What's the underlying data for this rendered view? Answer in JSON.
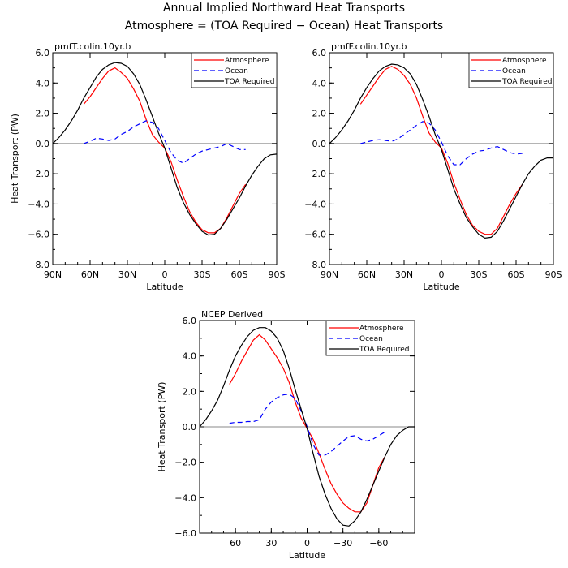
{
  "title_line1": "Annual Implied Northward Heat Transports",
  "title_line2": "Atmosphere = (TOA Required − Ocean) Heat Transports",
  "colors": {
    "atmosphere": "#ff0000",
    "ocean": "#0000ff",
    "toa": "#000000",
    "zero": "#888888"
  },
  "chart_data": [
    {
      "type": "line",
      "subtitle": "pmfT.colin.10yr.b",
      "xlabel": "Latitude",
      "ylabel": "Heat Transport (PW)",
      "xlim": [
        90,
        -90
      ],
      "ylim": [
        -8,
        6
      ],
      "xticks": [
        90,
        60,
        30,
        0,
        -30,
        -60,
        -90
      ],
      "xtick_labels": [
        "90N",
        "60N",
        "30N",
        "0",
        "30S",
        "60S",
        "90S"
      ],
      "yticks": [
        6,
        4,
        2,
        0,
        -2,
        -4,
        -6,
        -8
      ],
      "ytick_labels": [
        "6.0",
        "4.0",
        "2.0",
        "0.0",
        "−2.0",
        "−4.0",
        "−6.0",
        "−8.0"
      ],
      "legend": [
        "Atmosphere",
        "Ocean",
        "TOA Required"
      ],
      "series": [
        {
          "name": "Atmosphere",
          "style": "solid",
          "x": [
            65,
            60,
            55,
            50,
            45,
            40,
            35,
            30,
            25,
            20,
            15,
            10,
            5,
            0,
            -5,
            -10,
            -15,
            -20,
            -25,
            -30,
            -35,
            -40,
            -45,
            -50,
            -55,
            -60,
            -65
          ],
          "y": [
            2.6,
            3.1,
            3.7,
            4.3,
            4.8,
            5.0,
            4.7,
            4.3,
            3.6,
            2.8,
            1.6,
            0.6,
            0.1,
            -0.3,
            -1.2,
            -2.4,
            -3.5,
            -4.5,
            -5.2,
            -5.7,
            -5.9,
            -5.9,
            -5.6,
            -4.9,
            -4.1,
            -3.3,
            -2.7
          ]
        },
        {
          "name": "Ocean",
          "style": "dashed",
          "x": [
            65,
            60,
            55,
            50,
            45,
            40,
            35,
            30,
            25,
            20,
            15,
            10,
            5,
            0,
            -5,
            -10,
            -15,
            -20,
            -25,
            -30,
            -35,
            -40,
            -45,
            -50,
            -55,
            -60,
            -65
          ],
          "y": [
            0.0,
            0.15,
            0.35,
            0.3,
            0.2,
            0.3,
            0.6,
            0.8,
            1.1,
            1.3,
            1.5,
            1.4,
            1.0,
            0.2,
            -0.6,
            -1.1,
            -1.3,
            -1.0,
            -0.7,
            -0.5,
            -0.4,
            -0.3,
            -0.2,
            0.0,
            -0.2,
            -0.4,
            -0.4
          ]
        },
        {
          "name": "TOA Required",
          "style": "solid",
          "x": [
            90,
            85,
            80,
            75,
            70,
            65,
            60,
            55,
            50,
            45,
            40,
            35,
            30,
            25,
            20,
            15,
            10,
            5,
            0,
            -5,
            -10,
            -15,
            -20,
            -25,
            -30,
            -35,
            -40,
            -45,
            -50,
            -55,
            -60,
            -65,
            -70,
            -75,
            -80,
            -85,
            -90
          ],
          "y": [
            0.0,
            0.4,
            0.9,
            1.5,
            2.2,
            3.0,
            3.7,
            4.4,
            4.9,
            5.2,
            5.35,
            5.3,
            5.1,
            4.6,
            3.9,
            2.9,
            1.8,
            0.7,
            -0.3,
            -1.6,
            -2.9,
            -3.9,
            -4.7,
            -5.3,
            -5.8,
            -6.05,
            -6.0,
            -5.6,
            -5.0,
            -4.3,
            -3.6,
            -2.8,
            -2.1,
            -1.5,
            -1.0,
            -0.75,
            -0.7
          ]
        }
      ]
    },
    {
      "type": "line",
      "subtitle": "pmfF.colin.10yr.b",
      "xlabel": "Latitude",
      "ylabel": "",
      "xlim": [
        90,
        -90
      ],
      "ylim": [
        -8,
        6
      ],
      "xticks": [
        90,
        60,
        30,
        0,
        -30,
        -60,
        -90
      ],
      "xtick_labels": [
        "90N",
        "60N",
        "30N",
        "0",
        "30S",
        "60S",
        "90S"
      ],
      "yticks": [
        6,
        4,
        2,
        0,
        -2,
        -4,
        -6,
        -8
      ],
      "ytick_labels": [
        "6.0",
        "4.0",
        "2.0",
        "0.0",
        "−2.0",
        "−4.0",
        "−6.0",
        "−8.0"
      ],
      "legend": [
        "Atmosphere",
        "Ocean",
        "TOA Required"
      ],
      "series": [
        {
          "name": "Atmosphere",
          "style": "solid",
          "x": [
            65,
            60,
            55,
            50,
            45,
            40,
            35,
            30,
            25,
            20,
            15,
            10,
            5,
            0,
            -5,
            -10,
            -15,
            -20,
            -25,
            -30,
            -35,
            -40,
            -45,
            -50,
            -55,
            -60,
            -65
          ],
          "y": [
            2.6,
            3.2,
            3.8,
            4.4,
            4.9,
            5.1,
            4.9,
            4.5,
            3.9,
            3.0,
            1.8,
            0.7,
            0.1,
            -0.3,
            -1.3,
            -2.6,
            -3.7,
            -4.7,
            -5.4,
            -5.8,
            -6.0,
            -6.0,
            -5.6,
            -4.8,
            -4.0,
            -3.3,
            -2.7
          ]
        },
        {
          "name": "Ocean",
          "style": "dashed",
          "x": [
            65,
            60,
            55,
            50,
            45,
            40,
            35,
            30,
            25,
            20,
            15,
            10,
            5,
            0,
            -5,
            -10,
            -15,
            -20,
            -25,
            -30,
            -35,
            -40,
            -45,
            -50,
            -55,
            -60,
            -65
          ],
          "y": [
            0.0,
            0.1,
            0.2,
            0.25,
            0.2,
            0.15,
            0.3,
            0.6,
            0.9,
            1.2,
            1.45,
            1.35,
            0.9,
            0.1,
            -0.8,
            -1.4,
            -1.4,
            -1.0,
            -0.7,
            -0.5,
            -0.45,
            -0.3,
            -0.2,
            -0.4,
            -0.6,
            -0.7,
            -0.65
          ]
        },
        {
          "name": "TOA Required",
          "style": "solid",
          "x": [
            90,
            85,
            80,
            75,
            70,
            65,
            60,
            55,
            50,
            45,
            40,
            35,
            30,
            25,
            20,
            15,
            10,
            5,
            0,
            -5,
            -10,
            -15,
            -20,
            -25,
            -30,
            -35,
            -40,
            -45,
            -50,
            -55,
            -60,
            -65,
            -70,
            -75,
            -80,
            -85,
            -90
          ],
          "y": [
            0.0,
            0.4,
            0.9,
            1.5,
            2.2,
            3.0,
            3.7,
            4.3,
            4.8,
            5.1,
            5.25,
            5.2,
            5.0,
            4.6,
            3.9,
            2.9,
            1.8,
            0.6,
            -0.4,
            -1.7,
            -3.0,
            -4.0,
            -4.9,
            -5.5,
            -6.0,
            -6.25,
            -6.2,
            -5.8,
            -5.1,
            -4.3,
            -3.5,
            -2.7,
            -2.0,
            -1.5,
            -1.1,
            -0.95,
            -0.95
          ]
        }
      ]
    },
    {
      "type": "line",
      "subtitle": "NCEP Derived",
      "xlabel": "Latitude",
      "ylabel": "Heat Transport (PW)",
      "xlim": [
        90,
        -90
      ],
      "ylim": [
        -6,
        6
      ],
      "xticks": [
        60,
        30,
        0,
        -30,
        -60
      ],
      "xtick_labels": [
        "60",
        "30",
        "0",
        "−30",
        "−60"
      ],
      "yticks": [
        6,
        4,
        2,
        0,
        -2,
        -4,
        -6
      ],
      "ytick_labels": [
        "6.0",
        "4.0",
        "2.0",
        "0.0",
        "−2.0",
        "−4.0",
        "−6.0"
      ],
      "legend": [
        "Atmosphere",
        "Ocean",
        "TOA Required"
      ],
      "series": [
        {
          "name": "Atmosphere",
          "style": "solid",
          "x": [
            65,
            60,
            55,
            50,
            45,
            40,
            35,
            30,
            25,
            20,
            15,
            10,
            5,
            0,
            -5,
            -10,
            -15,
            -20,
            -25,
            -30,
            -35,
            -40,
            -45,
            -50,
            -55,
            -60,
            -65
          ],
          "y": [
            2.4,
            3.0,
            3.7,
            4.3,
            4.9,
            5.2,
            4.9,
            4.4,
            3.9,
            3.3,
            2.5,
            1.4,
            0.5,
            -0.1,
            -0.7,
            -1.5,
            -2.4,
            -3.2,
            -3.8,
            -4.3,
            -4.6,
            -4.8,
            -4.8,
            -4.3,
            -3.3,
            -2.3,
            -1.7
          ]
        },
        {
          "name": "Ocean",
          "style": "dashed",
          "x": [
            65,
            60,
            55,
            50,
            45,
            40,
            35,
            30,
            25,
            20,
            15,
            10,
            5,
            0,
            -5,
            -10,
            -15,
            -20,
            -25,
            -30,
            -35,
            -40,
            -45,
            -50,
            -55,
            -60,
            -65
          ],
          "y": [
            0.2,
            0.25,
            0.25,
            0.3,
            0.3,
            0.4,
            1.0,
            1.4,
            1.65,
            1.8,
            1.85,
            1.6,
            0.9,
            0.0,
            -1.0,
            -1.6,
            -1.6,
            -1.4,
            -1.1,
            -0.8,
            -0.55,
            -0.5,
            -0.7,
            -0.8,
            -0.7,
            -0.5,
            -0.3
          ]
        },
        {
          "name": "TOA Required",
          "style": "solid",
          "x": [
            90,
            85,
            80,
            75,
            70,
            65,
            60,
            55,
            50,
            45,
            40,
            35,
            30,
            25,
            20,
            15,
            10,
            5,
            0,
            -5,
            -10,
            -15,
            -20,
            -25,
            -30,
            -35,
            -40,
            -45,
            -50,
            -55,
            -60,
            -65,
            -70,
            -75,
            -80,
            -85,
            -90
          ],
          "y": [
            0.0,
            0.4,
            0.9,
            1.5,
            2.3,
            3.2,
            4.0,
            4.6,
            5.1,
            5.45,
            5.6,
            5.6,
            5.4,
            5.0,
            4.3,
            3.3,
            2.1,
            1.0,
            -0.1,
            -1.5,
            -2.8,
            -3.8,
            -4.6,
            -5.2,
            -5.55,
            -5.6,
            -5.3,
            -4.8,
            -4.1,
            -3.3,
            -2.5,
            -1.7,
            -1.0,
            -0.5,
            -0.2,
            0.0,
            0.0
          ]
        }
      ]
    }
  ]
}
